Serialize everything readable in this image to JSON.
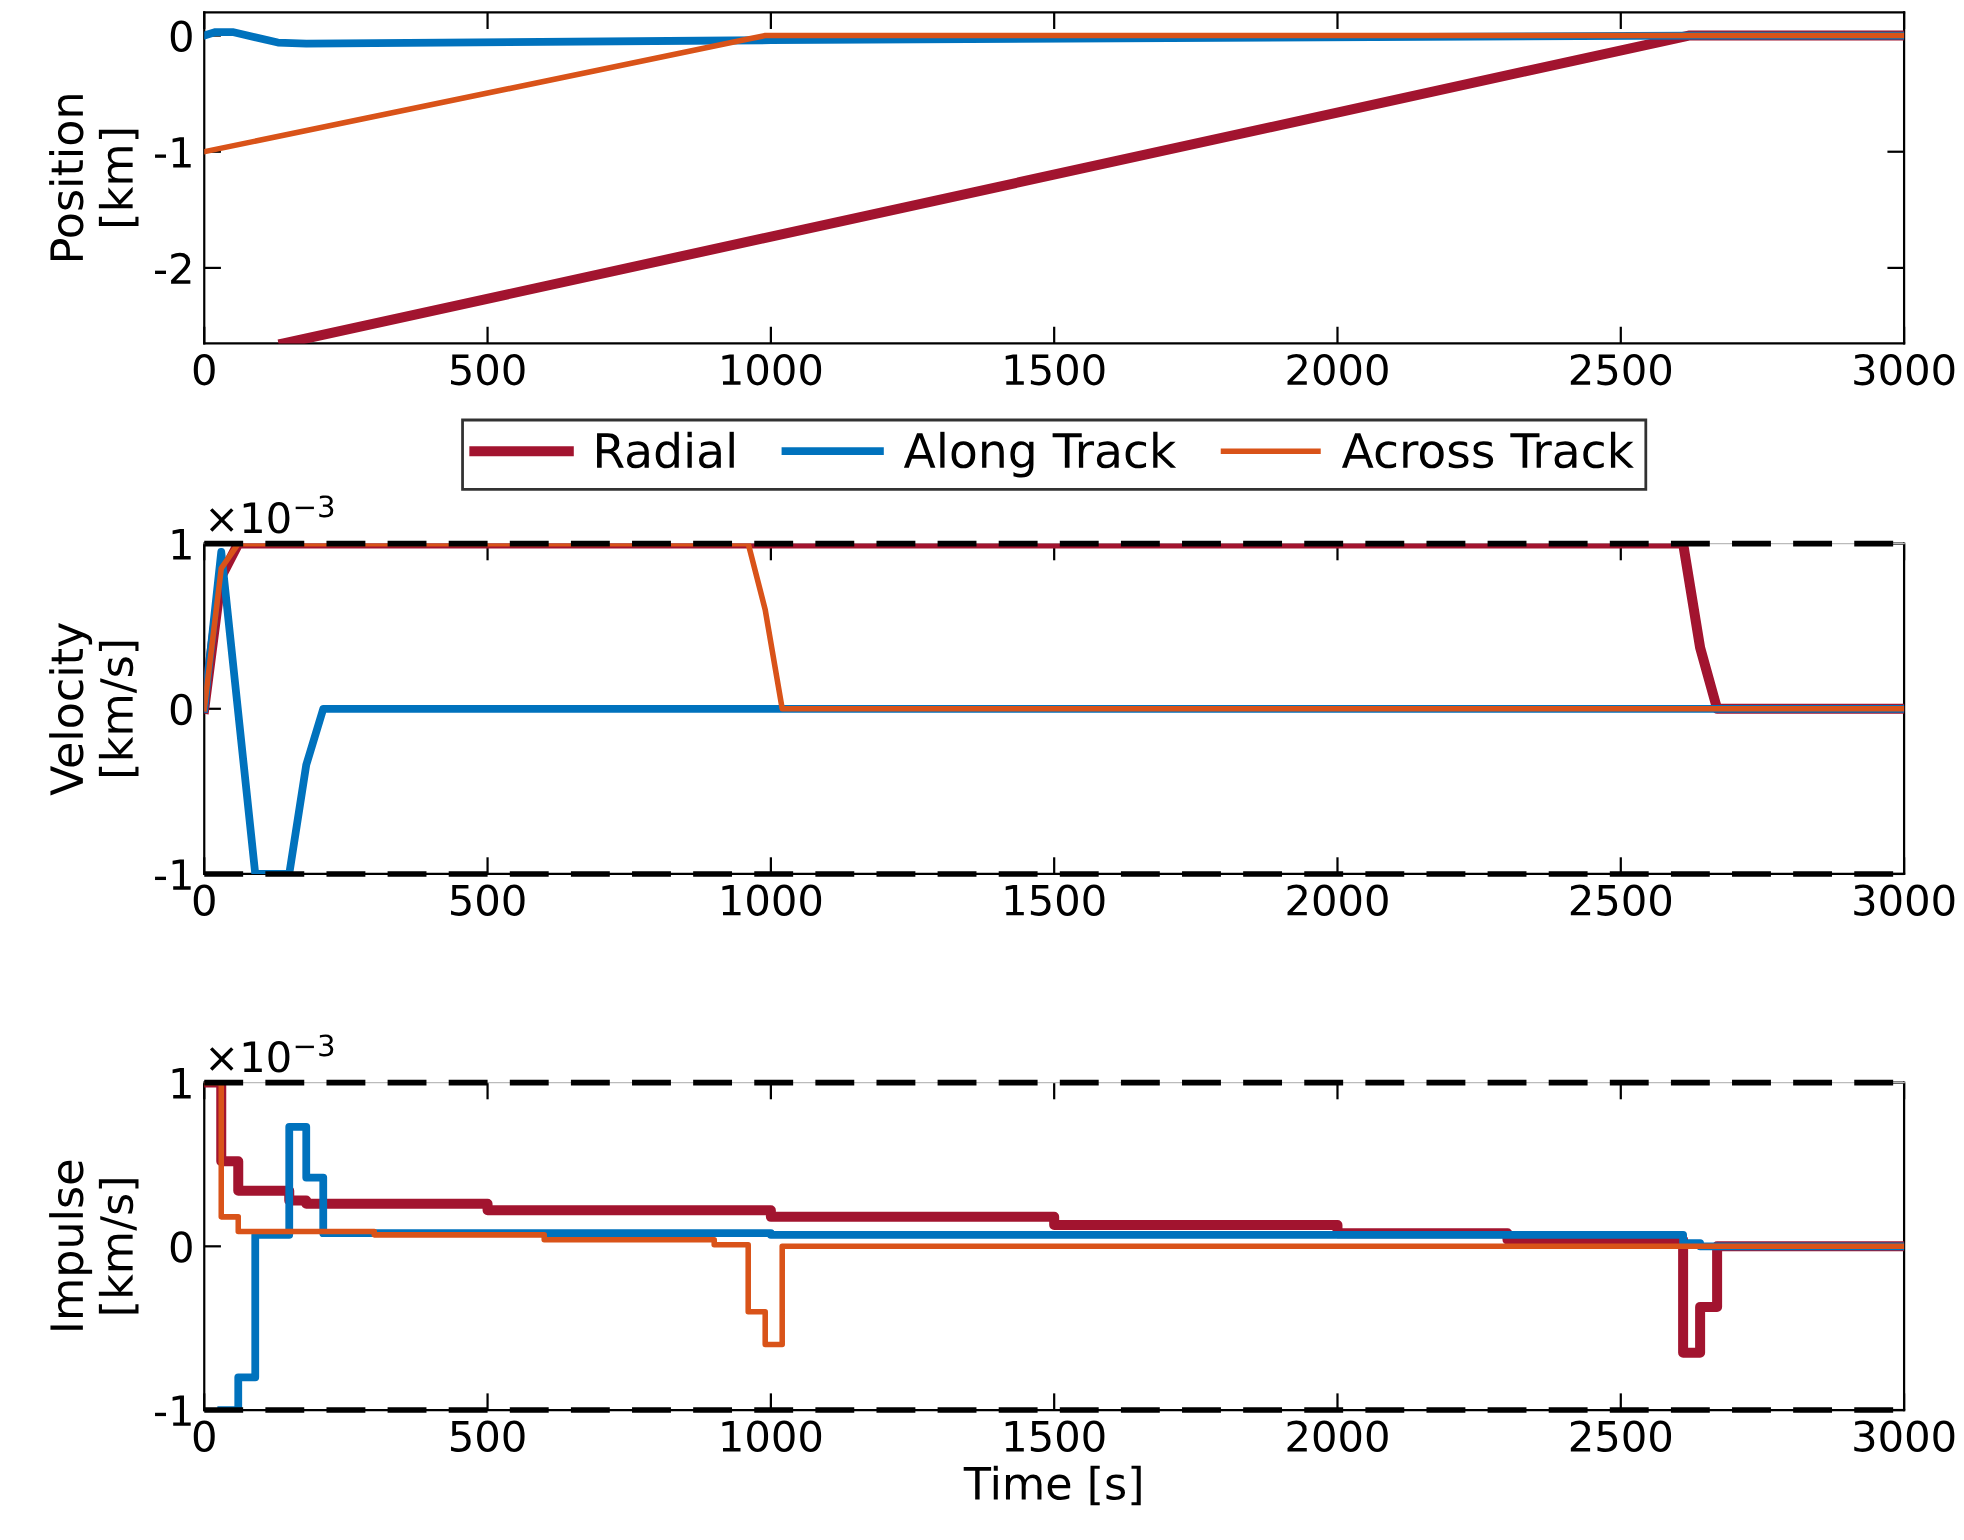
{
  "chart_data": [
    {
      "type": "line",
      "ylabel": "Position\n[km]",
      "xlim": [
        0,
        3000
      ],
      "xticks": [
        0,
        500,
        1000,
        1500,
        2000,
        2500,
        3000
      ],
      "ylim": [
        -2.65,
        0.2
      ],
      "yticks": [
        -2,
        -1,
        0
      ],
      "grid": false,
      "legend": "bottom",
      "series": [
        {
          "name": "Radial",
          "color": "#a2142f",
          "x": [
            140,
            2620,
            3000
          ],
          "values": [
            -2.65,
            0,
            0
          ]
        },
        {
          "name": "Along Track",
          "color": "#0072bd",
          "x": [
            0,
            20,
            50,
            130,
            180,
            1000,
            2620,
            3000
          ],
          "values": [
            0,
            0.03,
            0.03,
            -0.06,
            -0.07,
            -0.04,
            0,
            0
          ]
        },
        {
          "name": "Across Track",
          "color": "#d95319",
          "x": [
            0,
            960,
            990,
            3000
          ],
          "values": [
            -1,
            -0.03,
            0,
            0
          ]
        }
      ]
    },
    {
      "type": "line",
      "ylabel": "Velocity\n[km/s]",
      "annotations": [
        "×10$^{−3}$"
      ],
      "xlim": [
        0,
        3000
      ],
      "xticks": [
        0,
        500,
        1000,
        1500,
        2000,
        2500,
        3000
      ],
      "ylim": [
        -1,
        1
      ],
      "yticks": [
        -1,
        0,
        1
      ],
      "grid": false,
      "ref_lines": [
        {
          "axis": "y",
          "value": 1,
          "color": "#000000",
          "line_style": "dashed"
        },
        {
          "axis": "y",
          "value": -1,
          "color": "#000000",
          "line_style": "dashed"
        }
      ],
      "series": [
        {
          "color": "#a2142f",
          "x": [
            0,
            30,
            60,
            2610,
            2640,
            2670,
            3000
          ],
          "values": [
            0,
            0.8,
            1,
            1,
            0.37,
            0,
            0
          ]
        },
        {
          "color": "#0072bd",
          "x": [
            0,
            30,
            90,
            150,
            180,
            210,
            3000
          ],
          "values": [
            0,
            0.95,
            -1,
            -1,
            -0.34,
            0,
            0
          ]
        },
        {
          "color": "#d95319",
          "x": [
            0,
            30,
            60,
            960,
            990,
            1020,
            3000
          ],
          "values": [
            0,
            0.85,
            1,
            1,
            0.6,
            0,
            0
          ]
        }
      ]
    },
    {
      "type": "step",
      "xlabel": "Time [s]",
      "ylabel": "Impulse\n[km/s]",
      "annotations": [
        "×10$^{−3}$"
      ],
      "xlim": [
        0,
        3000
      ],
      "xticks": [
        0,
        500,
        1000,
        1500,
        2000,
        2500,
        3000
      ],
      "ylim": [
        -1,
        1
      ],
      "yticks": [
        -1,
        0,
        1
      ],
      "grid": false,
      "ref_lines": [
        {
          "axis": "y",
          "value": 1,
          "color": "#000000",
          "line_style": "dashed"
        },
        {
          "axis": "y",
          "value": -1,
          "color": "#000000",
          "line_style": "dashed"
        }
      ],
      "series": [
        {
          "color": "#a2142f",
          "x": [
            0,
            30,
            60,
            150,
            180,
            500,
            1000,
            1500,
            2000,
            2300,
            2610,
            2640,
            2670,
            3000
          ],
          "values": [
            1,
            0.52,
            0.34,
            0.28,
            0.26,
            0.22,
            0.18,
            0.13,
            0.08,
            0.04,
            -0.65,
            -0.37,
            0,
            0
          ]
        },
        {
          "color": "#0072bd",
          "x": [
            30,
            60,
            90,
            150,
            180,
            210,
            1000,
            2000,
            2610,
            2640,
            3000
          ],
          "values": [
            -1,
            -0.8,
            0.07,
            0.73,
            0.42,
            0.08,
            0.07,
            0.07,
            0.02,
            0,
            0
          ]
        },
        {
          "color": "#d95319",
          "x": [
            0,
            30,
            60,
            300,
            600,
            900,
            960,
            990,
            1020,
            3000
          ],
          "values": [
            1,
            0.18,
            0.09,
            0.07,
            0.04,
            0.01,
            -0.4,
            -0.6,
            0,
            0
          ]
        }
      ]
    }
  ]
}
